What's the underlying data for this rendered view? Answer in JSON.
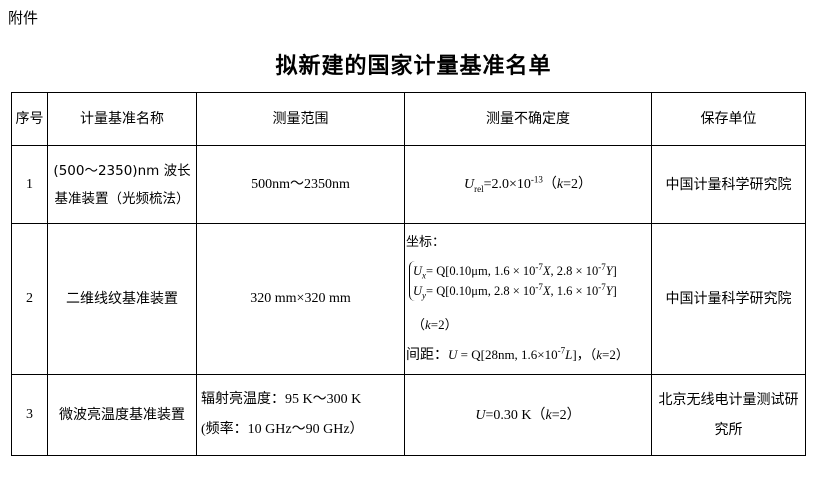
{
  "attachment_label": "附件",
  "title": "拟新建的国家计量基准名单",
  "headers": [
    "序号",
    "计量基准名称",
    "测量范围",
    "测量不确定度",
    "保存单位"
  ],
  "rows": [
    {
      "no": "1",
      "name": "(500～2350)nm 波长基准装置（光频梳法）",
      "range": "500nm～2350nm",
      "uncertainty": "Urel=2.0×10^-13（k=2）",
      "unit": "中国计量科学研究院"
    },
    {
      "no": "2",
      "name": "二维线纹基准装置",
      "range": "320 mm×320 mm",
      "uncertainty_label": "坐标：",
      "ux": "Ux= Q[0.10μm, 1.6 × 10^-7 X, 2.8 × 10^-7 Y]",
      "uy": "Uy= Q[0.10μm, 2.8 × 10^-7 X, 1.6 × 10^-7 Y]",
      "k": "（k=2）",
      "spacing": "间距：U = Q[28nm, 1.6×10^-7 L]，（k=2）",
      "unit": "中国计量科学研究院"
    },
    {
      "no": "3",
      "name": "微波亮温度基准装置",
      "range_line1": "辐射亮温度：95 K～300 K",
      "range_line2": "(频率：10 GHz～90 GHz）",
      "uncertainty": "U=0.30 K（k=2）",
      "unit": "北京无线电计量测试研究所"
    }
  ]
}
